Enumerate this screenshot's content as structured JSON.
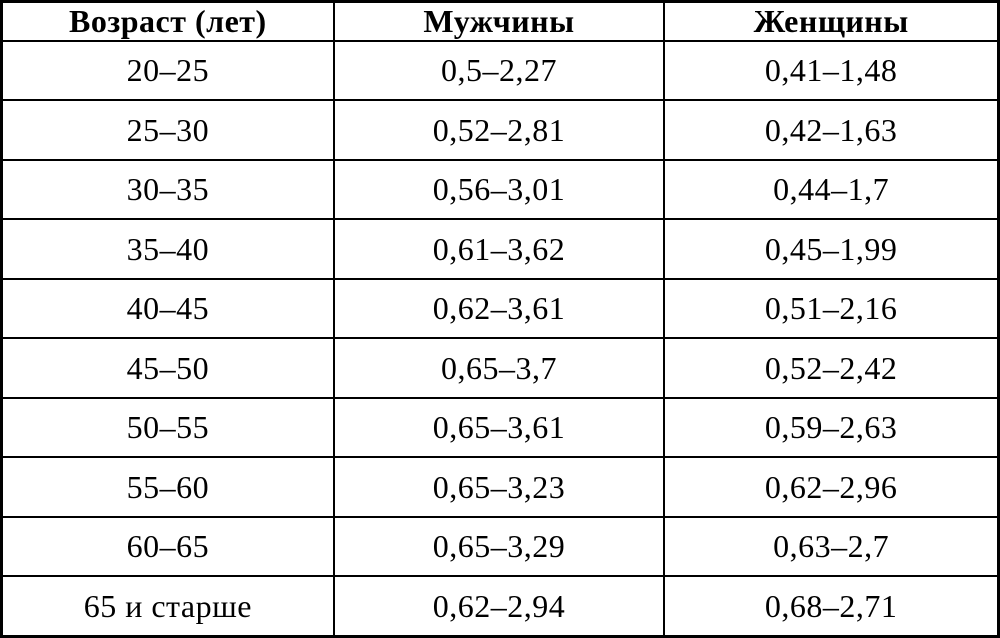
{
  "colors": {
    "background": "#ffffff",
    "border": "#000000",
    "text": "#000000"
  },
  "table": {
    "headers": [
      "Возраст (лет)",
      "Мужчины",
      "Женщины"
    ],
    "rows": [
      [
        "20–25",
        "0,5–2,27",
        "0,41–1,48"
      ],
      [
        "25–30",
        "0,52–2,81",
        "0,42–1,63"
      ],
      [
        "30–35",
        "0,56–3,01",
        "0,44–1,7"
      ],
      [
        "35–40",
        "0,61–3,62",
        "0,45–1,99"
      ],
      [
        "40–45",
        "0,62–3,61",
        "0,51–2,16"
      ],
      [
        "45–50",
        "0,65–3,7",
        "0,52–2,42"
      ],
      [
        "50–55",
        "0,65–3,61",
        "0,59–2,63"
      ],
      [
        "55–60",
        "0,65–3,23",
        "0,62–2,96"
      ],
      [
        "60–65",
        "0,65–3,29",
        "0,63–2,7"
      ],
      [
        "65 и старше",
        "0,62–2,94",
        "0,68–2,71"
      ]
    ]
  }
}
